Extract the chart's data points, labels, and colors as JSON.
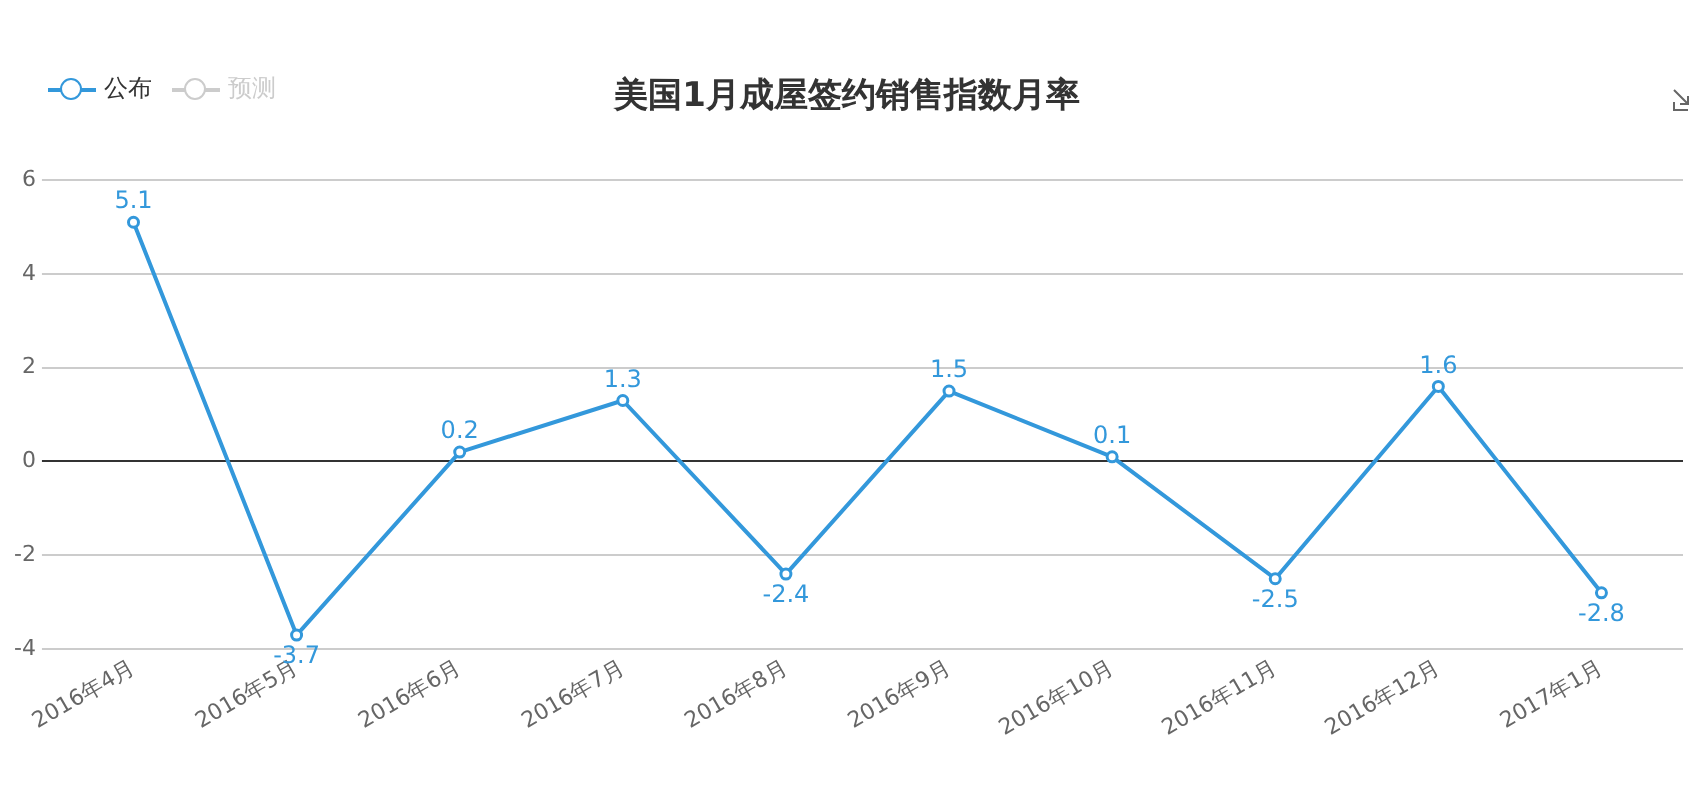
{
  "chart_data": {
    "type": "line",
    "title": "美国1月成屋签约销售指数月率",
    "categories": [
      "2016年4月",
      "2016年5月",
      "2016年6月",
      "2016年7月",
      "2016年8月",
      "2016年9月",
      "2016年10月",
      "2016年11月",
      "2016年12月",
      "2017年1月"
    ],
    "series": [
      {
        "name": "公布",
        "color": "#3398db",
        "values": [
          5.1,
          -3.7,
          0.2,
          1.3,
          -2.4,
          1.5,
          0.1,
          -2.5,
          1.6,
          -2.8
        ]
      },
      {
        "name": "预测",
        "color": "#cccccc",
        "values": [
          null,
          null,
          null,
          null,
          null,
          null,
          null,
          null,
          null,
          null
        ]
      }
    ],
    "ylim": [
      -4,
      6
    ],
    "yticks": [
      -4,
      -2,
      0,
      2,
      4,
      6
    ],
    "grid": "y",
    "legend": "top left",
    "marker": "circle",
    "line_style": "solid",
    "data_labels": true
  }
}
